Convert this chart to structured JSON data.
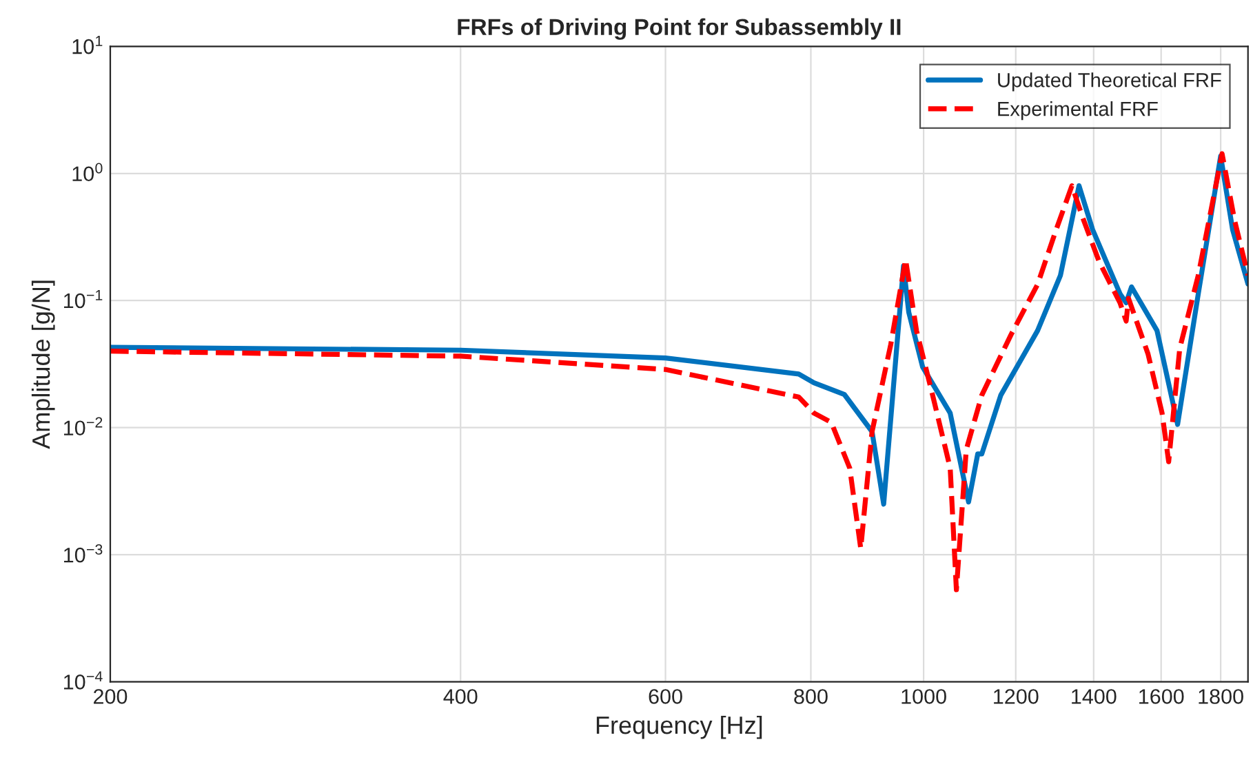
{
  "chart_data": {
    "type": "line",
    "title": "FRFs of Driving Point for Subassembly II",
    "xlabel": "Frequency [Hz]",
    "ylabel": "Amplitude [g/N]",
    "log": "xy",
    "grid": true,
    "legend": "top right",
    "xlim": [
      200,
      1900
    ],
    "xticks": [
      200,
      400,
      600,
      800,
      1000,
      1200,
      1400,
      1600,
      1800
    ],
    "ylim": [
      0.0001,
      10
    ],
    "yticks": [
      {
        "value": 0.0001,
        "label": "10$^{−4}$"
      },
      {
        "value": 0.001,
        "label": "10$^{−3}$"
      },
      {
        "value": 0.01,
        "label": "10$^{−2}$"
      },
      {
        "value": 0.1,
        "label": "10$^{−1}$"
      },
      {
        "value": 1,
        "label": "10$^{0}$"
      },
      {
        "value": 10,
        "label": "10$^{1}$"
      }
    ],
    "series": [
      {
        "name": "Updated Theoretical FRF",
        "color": "#0072bd",
        "line_style": "solid",
        "x": [
          200,
          400,
          600,
          781,
          805,
          855,
          903,
          924,
          961,
          971,
          998,
          1054,
          1093,
          1113,
          1122,
          1165,
          1253,
          1311,
          1360,
          1397,
          1475,
          1493,
          1509,
          1587,
          1653,
          1722,
          1800,
          1843,
          1900
        ],
        "values": [
          0.0428,
          0.0407,
          0.0353,
          0.0264,
          0.0225,
          0.0182,
          0.0093,
          0.0025,
          0.187,
          0.081,
          0.03,
          0.013,
          0.0026,
          0.0062,
          0.0062,
          0.018,
          0.058,
          0.158,
          0.8,
          0.362,
          0.113,
          0.096,
          0.128,
          0.058,
          0.0106,
          0.113,
          1.37,
          0.362,
          0.135
        ]
      },
      {
        "name": "Experimental FRF",
        "color": "#ff0000",
        "line_style": "dashed",
        "x": [
          200,
          400,
          600,
          781,
          805,
          833,
          864,
          883,
          903,
          937,
          965,
          986,
          1018,
          1054,
          1067,
          1088,
          1122,
          1189,
          1253,
          1300,
          1341,
          1368,
          1415,
          1475,
          1493,
          1500,
          1559,
          1603,
          1624,
          1660,
          1722,
          1805,
          1850,
          1900
        ],
        "values": [
          0.04,
          0.0365,
          0.0287,
          0.0174,
          0.013,
          0.011,
          0.0048,
          0.00112,
          0.0093,
          0.045,
          0.21,
          0.058,
          0.018,
          0.0048,
          0.00053,
          0.0067,
          0.018,
          0.054,
          0.134,
          0.362,
          0.8,
          0.466,
          0.203,
          0.096,
          0.069,
          0.104,
          0.038,
          0.013,
          0.0054,
          0.042,
          0.158,
          1.43,
          0.43,
          0.158
        ]
      }
    ]
  }
}
